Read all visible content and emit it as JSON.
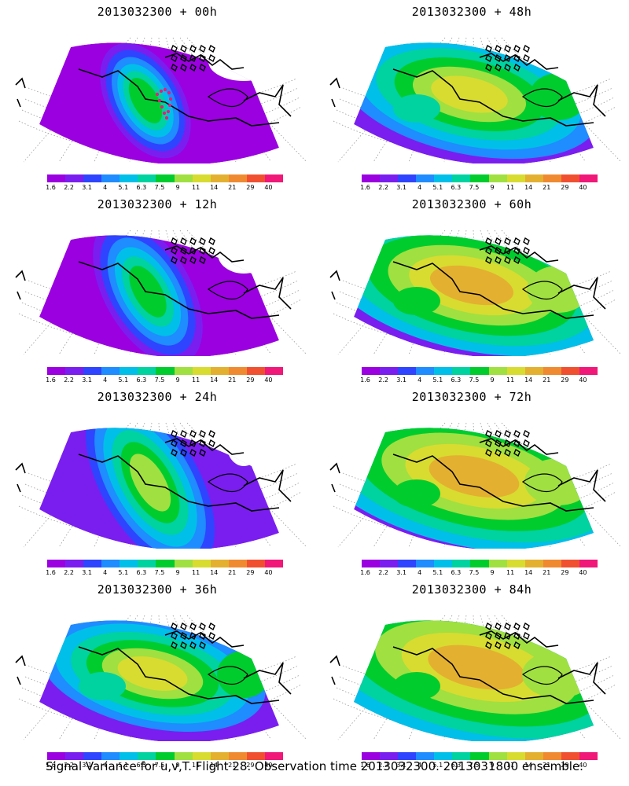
{
  "colorbar": {
    "colors": [
      "#9a00e0",
      "#7a1ef0",
      "#2e44ff",
      "#1f8cff",
      "#00bfe8",
      "#00d2a0",
      "#00cc2e",
      "#a0e040",
      "#d8dc30",
      "#e4b030",
      "#f08a30",
      "#f05030",
      "#f01878"
    ],
    "labels": [
      "1.6",
      "2.2",
      "3.1",
      "4",
      "5.1",
      "6.3",
      "7.5",
      "9",
      "11",
      "14",
      "21",
      "29",
      "40"
    ]
  },
  "panels": [
    {
      "title": "2013032300 + 00h",
      "level": 0,
      "track": true
    },
    {
      "title": "2013032300 + 48h",
      "level": 4,
      "track": false
    },
    {
      "title": "2013032300 + 12h",
      "level": 1,
      "track": false
    },
    {
      "title": "2013032300 + 60h",
      "level": 5,
      "track": false
    },
    {
      "title": "2013032300 + 24h",
      "level": 2,
      "track": false
    },
    {
      "title": "2013032300 + 72h",
      "level": 6,
      "track": false
    },
    {
      "title": "2013032300 + 36h",
      "level": 3,
      "track": false
    },
    {
      "title": "2013032300 + 84h",
      "level": 7,
      "track": false
    }
  ],
  "caption": "Signal Variance for u,v,T. Flight 28. Observation time 2013032300. 2013031800 ensemble."
}
